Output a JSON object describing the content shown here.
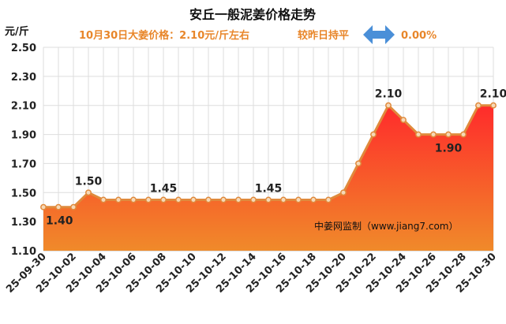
{
  "colors": {
    "accent": "#e8862a",
    "line": "#e08a3c",
    "marker_fill": "#f6d9b8",
    "area_top": "#ff2b2b",
    "area_bottom": "#f08a2a",
    "arrow": "#4a8fd8",
    "grid": "#dddddd"
  },
  "header": {
    "title": "安丘一般泥姜价格走势",
    "price_text": "10月30日大姜价格：2.10元/斤左右",
    "compare_text": "较昨日持平",
    "change_text": "0.00%",
    "arrow_icon": "double-arrow-icon"
  },
  "chart_data": {
    "type": "area",
    "unit_label": "元/斤",
    "ylim": [
      1.1,
      2.5
    ],
    "yticks": [
      "2.50",
      "2.30",
      "2.10",
      "1.90",
      "1.70",
      "1.50",
      "1.30",
      "1.10"
    ],
    "x": [
      "25-09-30",
      "25-10-01",
      "25-10-02",
      "25-10-03",
      "25-10-04",
      "25-10-05",
      "25-10-06",
      "25-10-07",
      "25-10-08",
      "25-10-09",
      "25-10-10",
      "25-10-11",
      "25-10-12",
      "25-10-13",
      "25-10-14",
      "25-10-15",
      "25-10-16",
      "25-10-17",
      "25-10-18",
      "25-10-19",
      "25-10-20",
      "25-10-21",
      "25-10-22",
      "25-10-23",
      "25-10-24",
      "25-10-25",
      "25-10-26",
      "25-10-27",
      "25-10-28",
      "25-10-29",
      "25-10-30"
    ],
    "values": [
      1.4,
      1.4,
      1.4,
      1.5,
      1.45,
      1.45,
      1.45,
      1.45,
      1.45,
      1.45,
      1.45,
      1.45,
      1.45,
      1.45,
      1.45,
      1.45,
      1.45,
      1.45,
      1.45,
      1.45,
      1.5,
      1.7,
      1.9,
      2.1,
      2.0,
      1.9,
      1.9,
      1.9,
      1.9,
      2.1,
      2.1
    ],
    "xtick_labels": [
      "25-09-30",
      "25-10-02",
      "25-10-04",
      "25-10-06",
      "25-10-08",
      "25-10-10",
      "25-10-12",
      "25-10-14",
      "25-10-16",
      "25-10-18",
      "25-10-20",
      "25-10-22",
      "25-10-24",
      "25-10-26",
      "25-10-28",
      "25-10-30"
    ],
    "data_labels": [
      {
        "index": 0,
        "text": "1.40",
        "position": "below"
      },
      {
        "index": 3,
        "text": "1.50",
        "position": "above"
      },
      {
        "index": 8,
        "text": "1.45",
        "position": "above"
      },
      {
        "index": 15,
        "text": "1.45",
        "position": "above"
      },
      {
        "index": 23,
        "text": "2.10",
        "position": "above"
      },
      {
        "index": 27,
        "text": "1.90",
        "position": "below"
      },
      {
        "index": 30,
        "text": "2.10",
        "position": "above"
      }
    ],
    "source_label": "中姜网监制（www.jiang7.com）",
    "grid": true,
    "legend": "none"
  }
}
